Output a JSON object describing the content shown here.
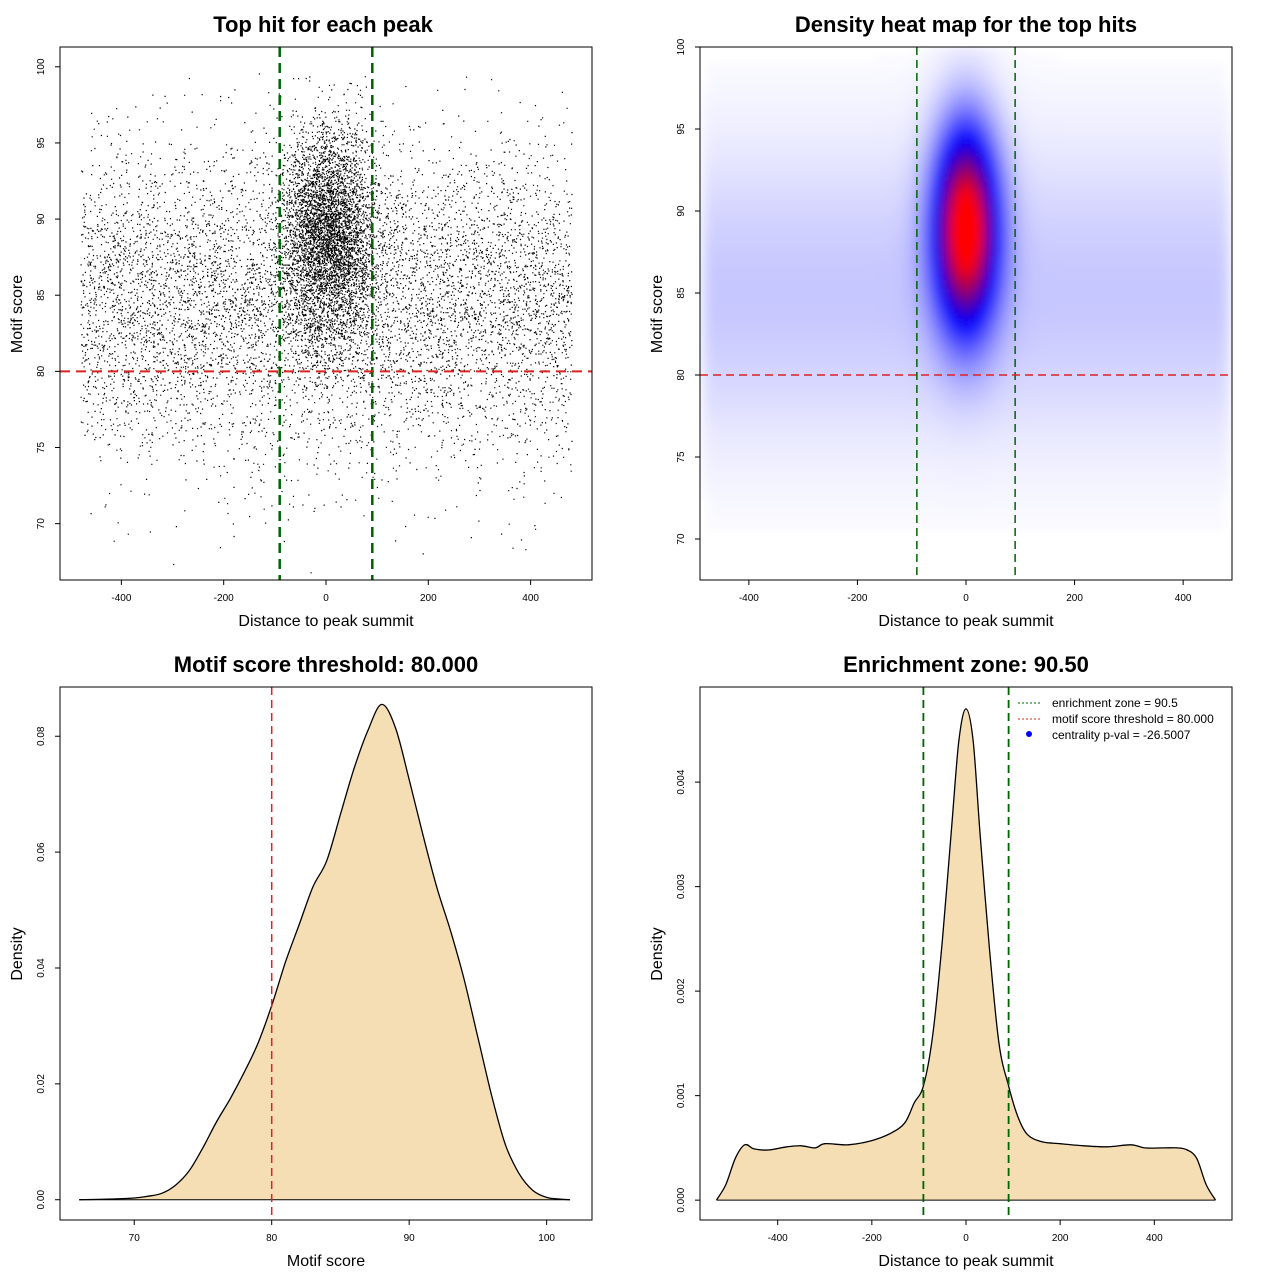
{
  "colors": {
    "threshold_line": "#dd2222",
    "enrichment_line": "#006400",
    "density_fill": "#f5deb3",
    "heat_low": "#ffffff",
    "heat_mid": "#0000ff",
    "heat_high": "#ff0000",
    "points": "#000000"
  },
  "chart_data": [
    {
      "type": "scatter",
      "title": "Top hit for each peak",
      "xlabel": "Distance to peak summit",
      "ylabel": "Motif score",
      "xlim": [
        -520,
        520
      ],
      "ylim": [
        66.3,
        101.3
      ],
      "x_ticks": [
        -400,
        -200,
        0,
        200,
        400
      ],
      "y_ticks": [
        70,
        75,
        80,
        85,
        90,
        95,
        100
      ],
      "n_points_approx": 12000,
      "background_cloud": {
        "x_range": [
          -480,
          480
        ],
        "y_center": 84.5,
        "y_sd": 5.0
      },
      "central_cluster": {
        "x_center": 5,
        "x_sd": 45,
        "y_center": 89,
        "y_sd": 3.5
      },
      "vlines": [
        -90.5,
        90.5
      ],
      "hline": 80,
      "point_color": "#000000"
    },
    {
      "type": "heatmap",
      "title": "Density heat map for the top hits",
      "xlabel": "Distance to peak summit",
      "ylabel": "Motif score",
      "xlim": [
        -490,
        490
      ],
      "ylim": [
        67.5,
        100
      ],
      "x_ticks": [
        -400,
        -200,
        0,
        200,
        400
      ],
      "y_ticks": [
        70,
        75,
        80,
        85,
        90,
        95,
        100
      ],
      "peak": {
        "x": 0,
        "y": 89
      },
      "colors": [
        "#ffffff",
        "#0000ff",
        "#ff0000"
      ],
      "vlines": [
        -90.5,
        90.5
      ],
      "hline": 80
    },
    {
      "type": "area",
      "title": "Motif score threshold: 80.000",
      "xlabel": "Motif score",
      "ylabel": "Density",
      "xlim": [
        64.6,
        103.3
      ],
      "ylim": [
        -0.0035,
        0.0885
      ],
      "x_ticks": [
        70,
        80,
        90,
        100
      ],
      "y_ticks": [
        0.0,
        0.02,
        0.04,
        0.06,
        0.08
      ],
      "y_tick_labels": [
        "0.00",
        "0.02",
        "0.04",
        "0.06",
        "0.08"
      ],
      "x": [
        66,
        68,
        70,
        71,
        72,
        73,
        74,
        75,
        76,
        77,
        78,
        79,
        80,
        81,
        82,
        83,
        84,
        85,
        86,
        87,
        88,
        89,
        90,
        91,
        92,
        93,
        94,
        95,
        96,
        97,
        98,
        99,
        100,
        101,
        101.7
      ],
      "values": [
        0.0,
        0.0001,
        0.0003,
        0.0006,
        0.0011,
        0.0025,
        0.005,
        0.009,
        0.0135,
        0.0175,
        0.022,
        0.027,
        0.0335,
        0.041,
        0.0475,
        0.054,
        0.0585,
        0.0665,
        0.0745,
        0.081,
        0.0855,
        0.0815,
        0.0725,
        0.063,
        0.054,
        0.0465,
        0.038,
        0.028,
        0.018,
        0.0095,
        0.0045,
        0.0016,
        0.0004,
        0.0001,
        0.0
      ],
      "vline": 80
    },
    {
      "type": "area",
      "title": "Enrichment zone: 90.50",
      "xlabel": "Distance to peak summit",
      "ylabel": "Density",
      "xlim": [
        -565,
        565
      ],
      "ylim": [
        -0.00019,
        0.00491
      ],
      "x_ticks": [
        -400,
        -200,
        0,
        200,
        400
      ],
      "y_ticks": [
        0.0,
        0.001,
        0.002,
        0.003,
        0.004
      ],
      "y_tick_labels": [
        "0.000",
        "0.001",
        "0.002",
        "0.003",
        "0.004"
      ],
      "x": [
        -530,
        -510,
        -490,
        -470,
        -450,
        -420,
        -380,
        -350,
        -320,
        -300,
        -250,
        -200,
        -160,
        -130,
        -110,
        -90,
        -70,
        -50,
        -30,
        -15,
        0,
        15,
        30,
        50,
        70,
        90,
        110,
        130,
        160,
        200,
        250,
        300,
        350,
        380,
        420,
        450,
        470,
        490,
        510,
        530
      ],
      "values": [
        0.0,
        0.00015,
        0.0004,
        0.00053,
        0.00049,
        0.00048,
        0.00051,
        0.00052,
        0.0005,
        0.00054,
        0.00053,
        0.00057,
        0.00064,
        0.00074,
        0.00093,
        0.0011,
        0.0016,
        0.0025,
        0.0036,
        0.0044,
        0.0047,
        0.0044,
        0.0035,
        0.0024,
        0.0015,
        0.0011,
        0.0008,
        0.00063,
        0.00056,
        0.00054,
        0.00052,
        0.00051,
        0.00053,
        0.0005,
        0.0005,
        0.0005,
        0.00048,
        0.0004,
        0.00015,
        0.0
      ],
      "vlines": [
        -90.5,
        90.5
      ],
      "legend": {
        "position": "top-right",
        "entries": [
          {
            "label": "enrichment zone = 90.5",
            "kind": "dotted-line",
            "color": "#006400"
          },
          {
            "label": "motif score threshold = 80.000",
            "kind": "dotted-line",
            "color": "#dd2222"
          },
          {
            "label": "centrality p-val = -26.5007",
            "kind": "point",
            "color": "#0000ff"
          }
        ]
      }
    }
  ]
}
